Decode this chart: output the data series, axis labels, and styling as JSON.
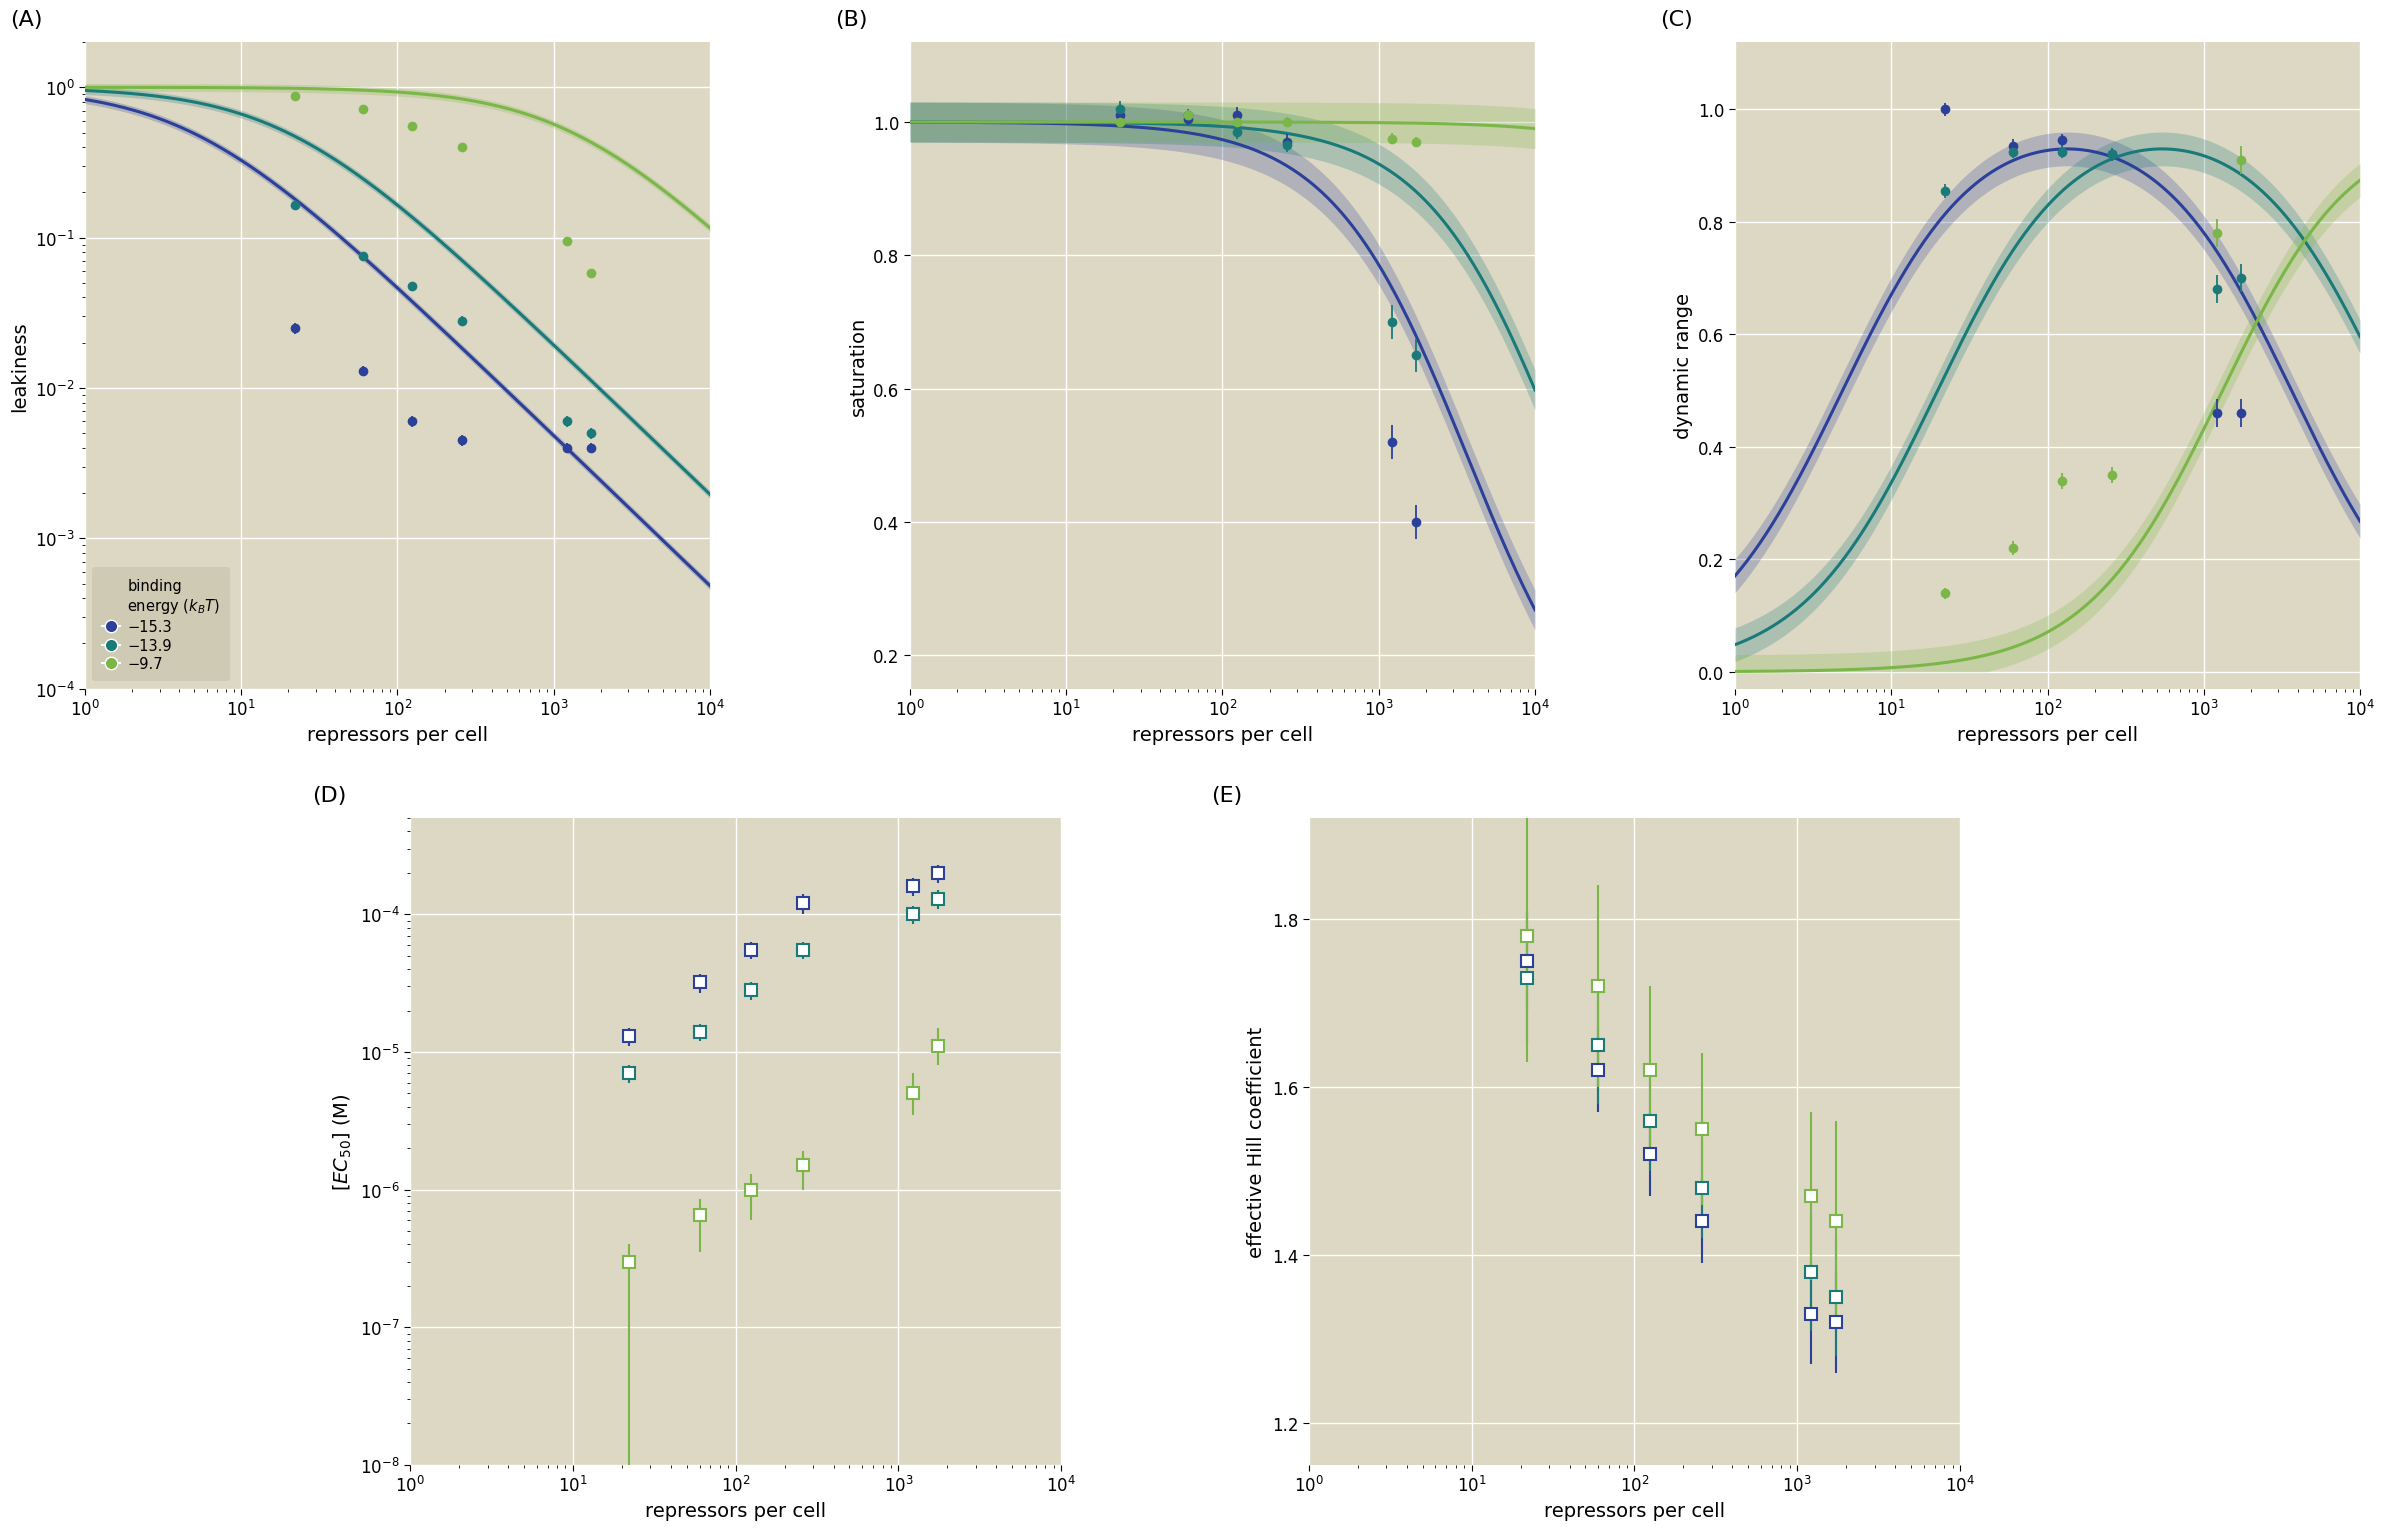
{
  "bg_color": "#ddd8c4",
  "colors": {
    "O1": "#2b4099",
    "O2": "#1a7a7a",
    "O3": "#7ab648"
  },
  "leakiness_data": {
    "O1_x": [
      22,
      60,
      124,
      260,
      1220,
      1740
    ],
    "O1_y": [
      0.025,
      0.013,
      0.006,
      0.0045,
      0.004,
      0.004
    ],
    "O1_yerr": [
      0.002,
      0.001,
      0.0005,
      0.0004,
      0.0003,
      0.0003
    ],
    "O2_x": [
      22,
      60,
      124,
      260,
      1220,
      1740
    ],
    "O2_y": [
      0.165,
      0.075,
      0.048,
      0.028,
      0.006,
      0.005
    ],
    "O2_yerr": [
      0.012,
      0.005,
      0.003,
      0.002,
      0.0005,
      0.0004
    ],
    "O3_x": [
      22,
      60,
      124,
      260,
      1220,
      1740
    ],
    "O3_y": [
      0.87,
      0.72,
      0.55,
      0.4,
      0.095,
      0.058
    ],
    "O3_yerr": [
      0.04,
      0.03,
      0.025,
      0.02,
      0.005,
      0.003
    ]
  },
  "saturation_data": {
    "O1_x": [
      22,
      60,
      124,
      260,
      1220,
      1740
    ],
    "O1_y": [
      1.01,
      1.005,
      1.01,
      0.97,
      0.52,
      0.4
    ],
    "O1_yerr": [
      0.012,
      0.01,
      0.012,
      0.012,
      0.025,
      0.025
    ],
    "O2_x": [
      22,
      60,
      124,
      260,
      1220,
      1740
    ],
    "O2_y": [
      1.02,
      1.01,
      0.985,
      0.965,
      0.7,
      0.65
    ],
    "O2_yerr": [
      0.012,
      0.01,
      0.01,
      0.01,
      0.025,
      0.025
    ],
    "O3_x": [
      22,
      60,
      124,
      260,
      1220,
      1740
    ],
    "O3_y": [
      1.0,
      1.01,
      1.0,
      1.0,
      0.975,
      0.97
    ],
    "O3_yerr": [
      0.008,
      0.008,
      0.007,
      0.007,
      0.008,
      0.007
    ]
  },
  "dynamic_range_data": {
    "O1_x": [
      22,
      60,
      124,
      260,
      1220,
      1740
    ],
    "O1_y": [
      1.0,
      0.935,
      0.945,
      0.92,
      0.46,
      0.46
    ],
    "O1_yerr": [
      0.012,
      0.012,
      0.012,
      0.012,
      0.025,
      0.025
    ],
    "O2_x": [
      22,
      60,
      124,
      260,
      1220,
      1740
    ],
    "O2_y": [
      0.855,
      0.925,
      0.925,
      0.92,
      0.68,
      0.7
    ],
    "O2_yerr": [
      0.012,
      0.012,
      0.012,
      0.012,
      0.025,
      0.025
    ],
    "O3_x": [
      22,
      60,
      124,
      260,
      1220,
      1740
    ],
    "O3_y": [
      0.14,
      0.22,
      0.34,
      0.35,
      0.78,
      0.91
    ],
    "O3_yerr": [
      0.01,
      0.012,
      0.014,
      0.014,
      0.025,
      0.025
    ]
  },
  "ec50_data": {
    "O1_x": [
      22,
      60,
      124,
      260,
      1220,
      1740
    ],
    "O1_y": [
      1.3e-05,
      3.2e-05,
      5.5e-05,
      0.00012,
      0.00016,
      0.0002
    ],
    "O1_yerr_lo": [
      2e-06,
      5e-06,
      8e-06,
      2e-05,
      2.5e-05,
      3e-05
    ],
    "O1_yerr_hi": [
      2e-06,
      5e-06,
      8e-06,
      2e-05,
      2.5e-05,
      3e-05
    ],
    "O2_x": [
      22,
      60,
      124,
      260,
      1220,
      1740
    ],
    "O2_y": [
      7e-06,
      1.4e-05,
      2.8e-05,
      5.5e-05,
      0.0001,
      0.00013
    ],
    "O2_yerr_lo": [
      1e-06,
      2e-06,
      4e-06,
      8e-06,
      1.5e-05,
      2e-05
    ],
    "O2_yerr_hi": [
      1e-06,
      2e-06,
      4e-06,
      8e-06,
      1.5e-05,
      2e-05
    ],
    "O3_x": [
      22,
      60,
      124,
      260,
      1220,
      1740
    ],
    "O3_y": [
      3e-07,
      6.5e-07,
      1e-06,
      1.5e-06,
      5e-06,
      1.1e-05
    ],
    "O3_yerr_lo": [
      2.9e-07,
      3e-07,
      4e-07,
      5e-07,
      1.5e-06,
      3e-06
    ],
    "O3_yerr_hi": [
      1e-07,
      2e-07,
      3e-07,
      4e-07,
      2e-06,
      4e-06
    ]
  },
  "hill_data": {
    "O1_x": [
      22,
      60,
      124,
      260,
      1220,
      1740
    ],
    "O1_y": [
      1.75,
      1.62,
      1.52,
      1.44,
      1.33,
      1.32
    ],
    "O1_yerr_lo": [
      0.06,
      0.05,
      0.05,
      0.05,
      0.06,
      0.06
    ],
    "O1_yerr_hi": [
      0.06,
      0.05,
      0.05,
      0.05,
      0.06,
      0.06
    ],
    "O2_x": [
      22,
      60,
      124,
      260,
      1220,
      1740
    ],
    "O2_y": [
      1.73,
      1.65,
      1.56,
      1.48,
      1.38,
      1.35
    ],
    "O2_yerr_lo": [
      0.08,
      0.07,
      0.06,
      0.06,
      0.07,
      0.07
    ],
    "O2_yerr_hi": [
      0.08,
      0.07,
      0.06,
      0.06,
      0.07,
      0.07
    ],
    "O3_x": [
      22,
      60,
      124,
      260,
      1220,
      1740
    ],
    "O3_y": [
      1.78,
      1.72,
      1.62,
      1.55,
      1.47,
      1.44
    ],
    "O3_yerr_lo": [
      0.15,
      0.12,
      0.1,
      0.09,
      0.1,
      0.12
    ],
    "O3_yerr_hi": [
      0.15,
      0.12,
      0.1,
      0.09,
      0.1,
      0.12
    ]
  },
  "xlim": [
    1,
    10000
  ],
  "label_font_size": 14,
  "tick_font_size": 12
}
